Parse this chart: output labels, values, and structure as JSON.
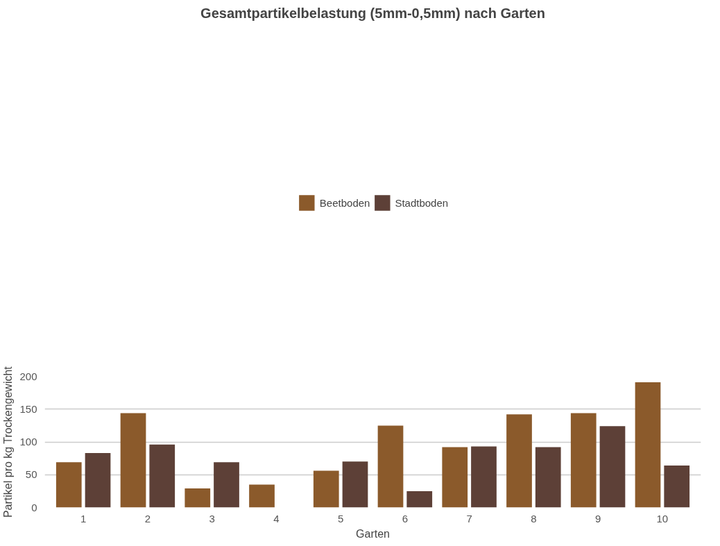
{
  "chart_data": {
    "type": "bar",
    "title": "Gesamtpartikelbelastung (5mm-0,5mm) nach Garten",
    "xlabel": "Garten",
    "ylabel": "Partikel pro kg Trockengewicht",
    "categories": [
      "1",
      "2",
      "3",
      "4",
      "5",
      "6",
      "7",
      "8",
      "9",
      "10"
    ],
    "series": [
      {
        "name": "Beetboden",
        "color": "#8b5a2b",
        "values": [
          69,
          144,
          29,
          35,
          56,
          125,
          92,
          142,
          144,
          191
        ]
      },
      {
        "name": "Stadtboden",
        "color": "#5d4037",
        "values": [
          83,
          96,
          69,
          0,
          70,
          25,
          93,
          92,
          124,
          64
        ]
      }
    ],
    "ylim": [
      0,
      200
    ],
    "yticks": [
      0,
      50,
      100,
      150,
      200
    ],
    "grid": "y",
    "legend": "top"
  }
}
